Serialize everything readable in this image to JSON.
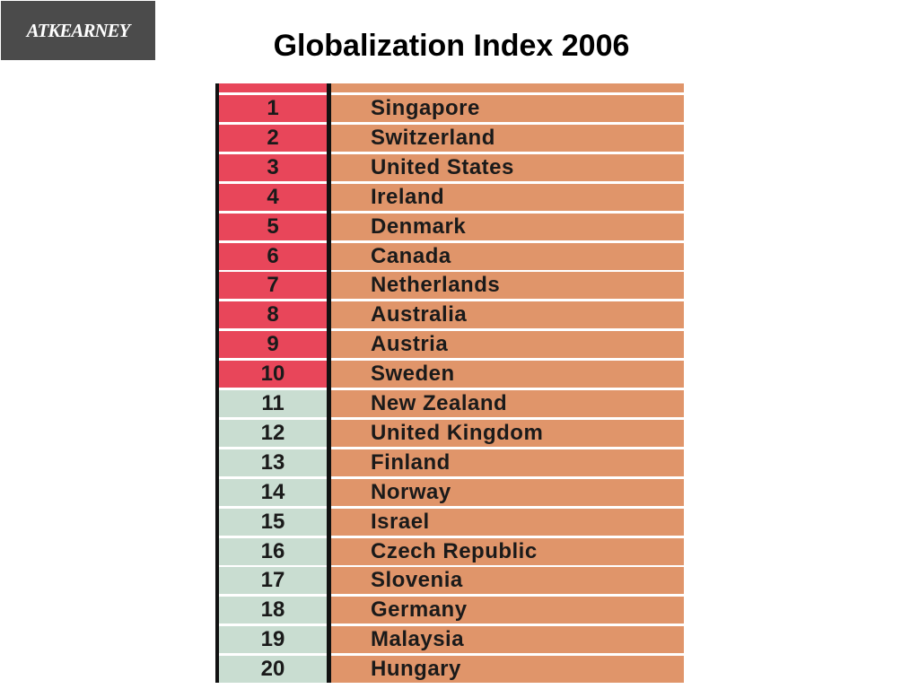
{
  "header": {
    "logo": "ATKEARNEY",
    "title": "Globalization Index 2006"
  },
  "table": {
    "rows": [
      {
        "rank": 1,
        "country": "Singapore",
        "color": "#e8465a"
      },
      {
        "rank": 2,
        "country": "Switzerland",
        "color": "#e8465a"
      },
      {
        "rank": 3,
        "country": "United States",
        "color": "#e8465a"
      },
      {
        "rank": 4,
        "country": "Ireland",
        "color": "#e8465a"
      },
      {
        "rank": 5,
        "country": "Denmark",
        "color": "#e8465a"
      },
      {
        "rank": 6,
        "country": "Canada",
        "color": "#e8465a"
      },
      {
        "rank": 7,
        "country": "Netherlands",
        "color": "#e8465a"
      },
      {
        "rank": 8,
        "country": "Australia",
        "color": "#e8465a"
      },
      {
        "rank": 9,
        "country": "Austria",
        "color": "#e8465a"
      },
      {
        "rank": 10,
        "country": "Sweden",
        "color": "#e8465a"
      },
      {
        "rank": 11,
        "country": "New Zealand",
        "color": "#c9ddd1"
      },
      {
        "rank": 12,
        "country": "United Kingdom",
        "color": "#c9ddd1"
      },
      {
        "rank": 13,
        "country": "Finland",
        "color": "#c9ddd1"
      },
      {
        "rank": 14,
        "country": "Norway",
        "color": "#c9ddd1"
      },
      {
        "rank": 15,
        "country": "Israel",
        "color": "#c9ddd1"
      },
      {
        "rank": 16,
        "country": "Czech Republic",
        "color": "#c9ddd1"
      },
      {
        "rank": 17,
        "country": "Slovenia",
        "color": "#c9ddd1"
      },
      {
        "rank": 18,
        "country": "Germany",
        "color": "#c9ddd1"
      },
      {
        "rank": 19,
        "country": "Malaysia",
        "color": "#c9ddd1"
      },
      {
        "rank": 20,
        "country": "Hungary",
        "color": "#c9ddd1"
      }
    ]
  }
}
